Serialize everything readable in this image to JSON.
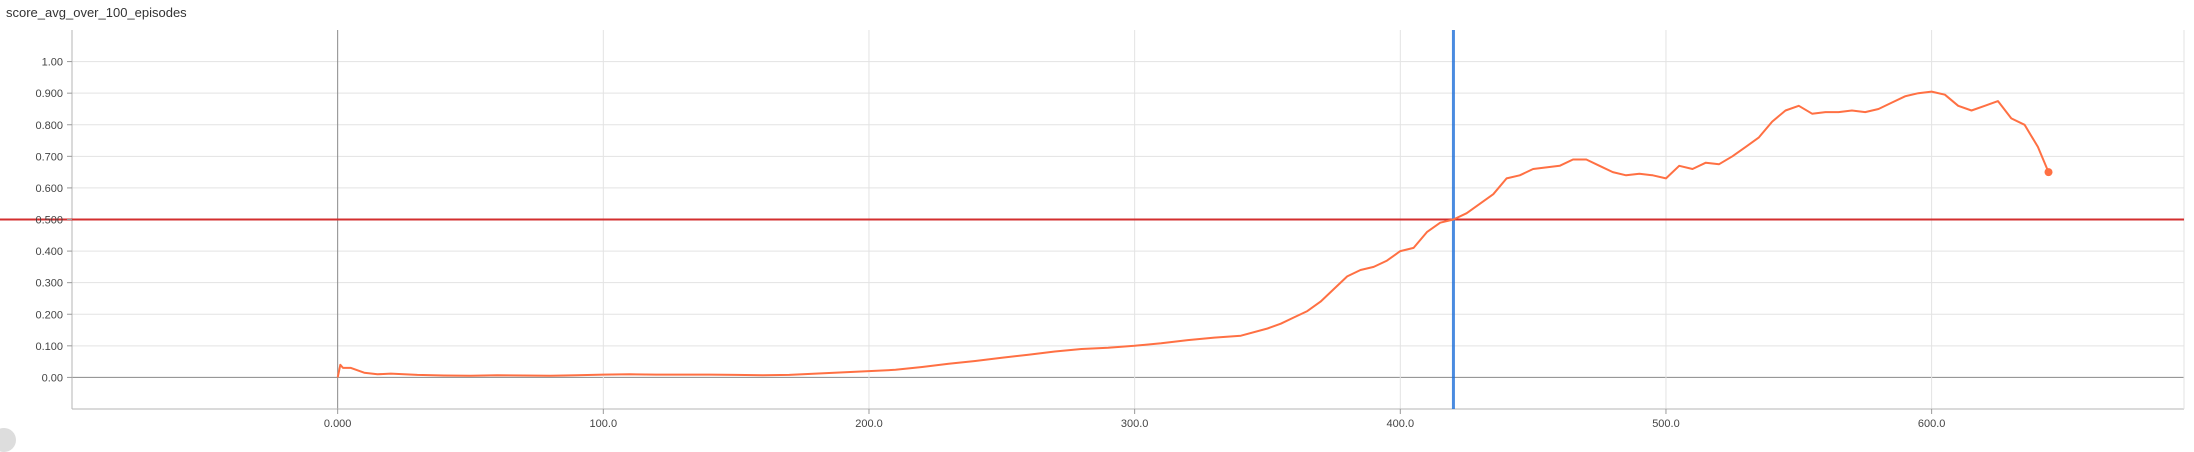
{
  "chart_data": {
    "type": "line",
    "title": "score_avg_over_100_episodes",
    "xlabel": "",
    "ylabel": "",
    "xlim": [
      -100,
      695
    ],
    "ylim": [
      -0.1,
      1.1
    ],
    "grid": true,
    "x_ticks": [
      "0.000",
      "100.0",
      "200.0",
      "300.0",
      "400.0",
      "500.0",
      "600.0"
    ],
    "y_ticks": [
      "0.00",
      "0.100",
      "0.200",
      "0.300",
      "0.400",
      "0.500",
      "0.600",
      "0.700",
      "0.800",
      "0.900",
      "1.00"
    ],
    "threshold": 0.5,
    "cursor_x": 420,
    "series": [
      {
        "color": "#ff7043",
        "x": [
          0,
          1,
          2,
          5,
          10,
          15,
          20,
          30,
          40,
          50,
          60,
          70,
          80,
          90,
          100,
          110,
          120,
          130,
          140,
          150,
          160,
          170,
          180,
          190,
          200,
          210,
          220,
          230,
          240,
          250,
          260,
          270,
          280,
          290,
          300,
          310,
          320,
          330,
          340,
          350,
          355,
          360,
          365,
          370,
          375,
          380,
          385,
          390,
          395,
          400,
          405,
          410,
          415,
          420,
          425,
          430,
          435,
          440,
          445,
          450,
          455,
          460,
          465,
          470,
          475,
          480,
          485,
          490,
          495,
          500,
          505,
          510,
          515,
          520,
          525,
          530,
          535,
          540,
          545,
          550,
          555,
          560,
          565,
          570,
          575,
          580,
          585,
          590,
          595,
          600,
          605,
          610,
          615,
          620,
          625,
          630,
          635,
          640,
          644
        ],
        "y": [
          0.0,
          0.04,
          0.03,
          0.03,
          0.015,
          0.01,
          0.012,
          0.008,
          0.006,
          0.005,
          0.007,
          0.006,
          0.005,
          0.007,
          0.009,
          0.01,
          0.009,
          0.009,
          0.009,
          0.008,
          0.007,
          0.008,
          0.012,
          0.016,
          0.02,
          0.024,
          0.033,
          0.043,
          0.052,
          0.062,
          0.072,
          0.082,
          0.09,
          0.094,
          0.1,
          0.108,
          0.118,
          0.126,
          0.132,
          0.155,
          0.17,
          0.19,
          0.21,
          0.24,
          0.28,
          0.32,
          0.34,
          0.35,
          0.37,
          0.4,
          0.41,
          0.46,
          0.49,
          0.5,
          0.52,
          0.55,
          0.58,
          0.63,
          0.64,
          0.66,
          0.665,
          0.67,
          0.69,
          0.69,
          0.67,
          0.65,
          0.64,
          0.645,
          0.64,
          0.63,
          0.67,
          0.66,
          0.68,
          0.675,
          0.7,
          0.73,
          0.76,
          0.81,
          0.845,
          0.86,
          0.835,
          0.84,
          0.84,
          0.845,
          0.84,
          0.85,
          0.87,
          0.89,
          0.9,
          0.905,
          0.895,
          0.86,
          0.845,
          0.86,
          0.875,
          0.82,
          0.8,
          0.73,
          0.65
        ]
      }
    ]
  }
}
